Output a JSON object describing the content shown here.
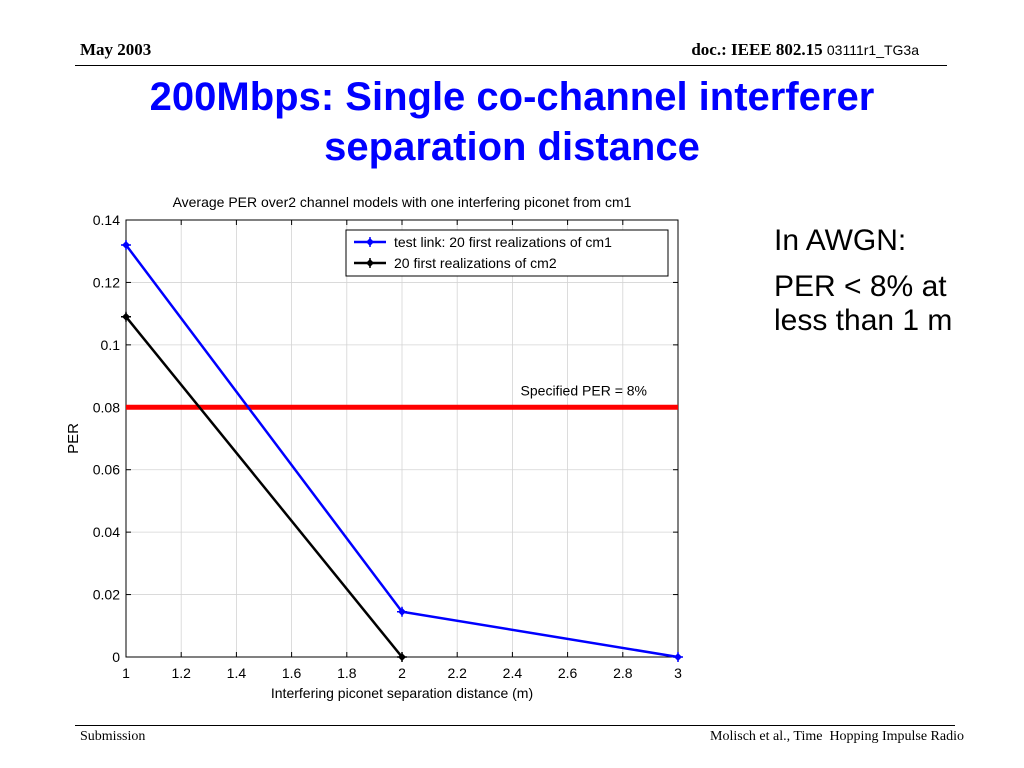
{
  "header": {
    "date": "May 2003",
    "doc_prefix": "doc.: IEEE 802.15",
    "doc_number": "03111r1_TG3a"
  },
  "title": {
    "line1": "200Mbps: Single co-channel interferer",
    "line2": "separation distance"
  },
  "side_notes": {
    "line1": "In AWGN:",
    "line2": "PER < 8% at less than 1 m"
  },
  "footer": {
    "left": "Submission",
    "right": "Molisch et al., Time  Hopping Impulse Radio"
  },
  "chart_data": {
    "type": "line",
    "title": "Average PER over2 channel models with one interfering piconet from cm1",
    "xlabel": "Interfering piconet separation distance (m)",
    "ylabel": "PER",
    "xlim": [
      1,
      3
    ],
    "ylim": [
      0,
      0.14
    ],
    "x_ticks": [
      "1",
      "1.2",
      "1.4",
      "1.6",
      "1.8",
      "2",
      "2.2",
      "2.4",
      "2.6",
      "2.8",
      "3"
    ],
    "y_ticks": [
      "0",
      "0.02",
      "0.04",
      "0.06",
      "0.08",
      "0.1",
      "0.12",
      "0.14"
    ],
    "grid": true,
    "legend_position": "top-right",
    "series": [
      {
        "name": "test link: 20 first realizations of cm1",
        "color": "#0000ff",
        "x": [
          1,
          2,
          3
        ],
        "y": [
          0.132,
          0.0145,
          0
        ]
      },
      {
        "name": "20 first realizations of cm2",
        "color": "#000000",
        "x": [
          1,
          2
        ],
        "y": [
          0.109,
          0
        ]
      }
    ],
    "reference_line": {
      "label": "Specified PER = 8%",
      "y": 0.08,
      "color": "#ff0000"
    }
  }
}
